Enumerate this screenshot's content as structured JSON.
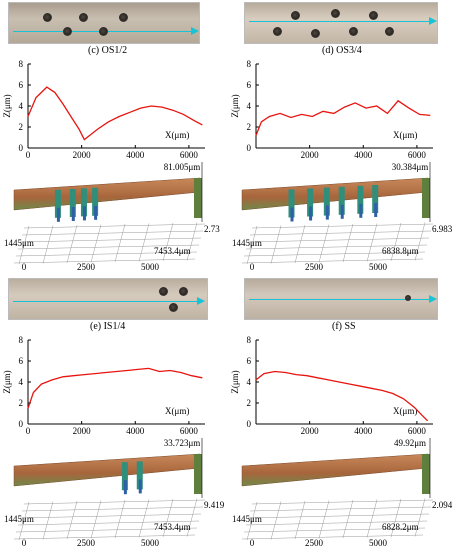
{
  "panels": [
    {
      "id": "c",
      "caption": "(c) OS1/2",
      "chart_data": {
        "type": "line",
        "xlabel": "X(μm)",
        "ylabel": "Z(μm)",
        "xlim": [
          0,
          6600
        ],
        "ylim": [
          0,
          8
        ],
        "xticks": [
          "0",
          "2000",
          "4000",
          "6000"
        ],
        "yticks": [
          "0",
          "2",
          "4",
          "6",
          "8"
        ],
        "series": [
          {
            "color": "#e8140f",
            "x": [
              0,
              300,
              700,
              1000,
              1300,
              1600,
              1900,
              2100,
              2300,
              2600,
              3000,
              3400,
              3800,
              4200,
              4600,
              5000,
              5400,
              5800,
              6200,
              6500
            ],
            "y": [
              3.0,
              4.8,
              5.8,
              5.3,
              4.2,
              3.0,
              1.8,
              0.8,
              1.2,
              1.8,
              2.5,
              3.0,
              3.4,
              3.8,
              4.0,
              3.9,
              3.6,
              3.2,
              2.6,
              2.2
            ]
          }
        ]
      },
      "surface": {
        "top_value": "81.005μm",
        "right_value": "2.73",
        "depth_label": "1445μm",
        "width_label": "7453.4μm",
        "axis_ticks": [
          "0",
          "2500",
          "5000"
        ]
      }
    },
    {
      "id": "d",
      "caption": "(d) OS3/4",
      "chart_data": {
        "type": "line",
        "xlabel": "X(μm)",
        "ylabel": "Z(μm)",
        "xlim": [
          0,
          6600
        ],
        "ylim": [
          0,
          8
        ],
        "xticks": [
          "2000",
          "4000",
          "6000"
        ],
        "yticks": [
          "0",
          "2",
          "4",
          "6",
          "8"
        ],
        "series": [
          {
            "color": "#e8140f",
            "x": [
              0,
              200,
              500,
              900,
              1300,
              1700,
              2100,
              2500,
              2900,
              3300,
              3700,
              4100,
              4500,
              4900,
              5300,
              5700,
              6100,
              6500
            ],
            "y": [
              1.2,
              2.5,
              3.0,
              3.3,
              2.9,
              3.2,
              3.0,
              3.5,
              3.3,
              3.9,
              4.3,
              3.8,
              4.0,
              3.3,
              4.5,
              3.8,
              3.2,
              3.1
            ]
          }
        ]
      },
      "surface": {
        "top_value": "30.384μm",
        "right_value": "6.983",
        "depth_label": "1445μm",
        "width_label": "6838.8μm",
        "axis_ticks": [
          "0",
          "2500",
          "5000"
        ]
      }
    },
    {
      "id": "e",
      "caption": "(e) IS1/4",
      "chart_data": {
        "type": "line",
        "xlabel": "X(μm)",
        "ylabel": "Z(μm)",
        "xlim": [
          0,
          6600
        ],
        "ylim": [
          0,
          8
        ],
        "xticks": [
          "0",
          "2000",
          "4000",
          "6000"
        ],
        "yticks": [
          "0",
          "2",
          "4",
          "6",
          "8"
        ],
        "series": [
          {
            "color": "#e8140f",
            "x": [
              0,
              200,
              500,
              900,
              1300,
              1700,
              2100,
              2500,
              2900,
              3300,
              3700,
              4100,
              4500,
              4900,
              5300,
              5700,
              6100,
              6500
            ],
            "y": [
              1.5,
              3.0,
              3.8,
              4.2,
              4.5,
              4.6,
              4.7,
              4.8,
              4.9,
              5.0,
              5.1,
              5.2,
              5.3,
              5.0,
              5.1,
              4.9,
              4.6,
              4.4
            ]
          }
        ]
      },
      "surface": {
        "top_value": "33.723μm",
        "right_value": "9.419",
        "depth_label": "1445μm",
        "width_label": "7453.4μm",
        "axis_ticks": [
          "0",
          "2500",
          "5000"
        ]
      }
    },
    {
      "id": "f",
      "caption": "(f) SS",
      "chart_data": {
        "type": "line",
        "xlabel": "X(μm)",
        "ylabel": "Z(μm)",
        "xlim": [
          0,
          6600
        ],
        "ylim": [
          0,
          8
        ],
        "xticks": [
          "2000",
          "4000",
          "6000"
        ],
        "yticks": [
          "0",
          "2",
          "4",
          "6",
          "8"
        ],
        "series": [
          {
            "color": "#e8140f",
            "x": [
              0,
              300,
              700,
              1100,
              1500,
              1900,
              2300,
              2700,
              3100,
              3500,
              3900,
              4300,
              4700,
              5100,
              5500,
              5900,
              6200,
              6400
            ],
            "y": [
              4.2,
              4.8,
              5.0,
              4.9,
              4.7,
              4.6,
              4.4,
              4.2,
              4.0,
              3.8,
              3.6,
              3.4,
              3.2,
              2.9,
              2.4,
              1.6,
              0.8,
              0.3
            ]
          }
        ]
      },
      "surface": {
        "top_value": "49.92μm",
        "right_value": "2.094",
        "depth_label": "1445μm",
        "width_label": "6828.2μm",
        "axis_ticks": [
          "0",
          "2500",
          "5000"
        ]
      }
    }
  ]
}
